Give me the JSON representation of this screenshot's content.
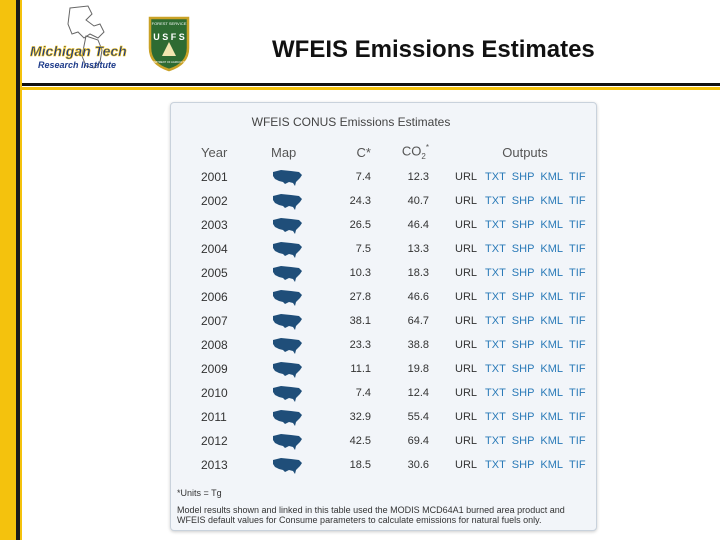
{
  "slide": {
    "title": "WFEIS Emissions Estimates",
    "logo_primary": "Michigan Tech",
    "logo_secondary": "Research Institute",
    "agency_logo": "U S F S",
    "agency_logo_top": "FOREST SERVICE",
    "agency_logo_bottom": "DEPARTMENT OF AGRICULTURE"
  },
  "table": {
    "title": "WFEIS CONUS Emissions Estimates",
    "headers": {
      "year": "Year",
      "map": "Map",
      "c": "C*",
      "co2_main": "CO",
      "co2_sub": "2",
      "co2_star": "*",
      "outputs": "Outputs"
    },
    "output_labels": [
      "URL",
      "TXT",
      "SHP",
      "KML",
      "TIF"
    ],
    "rows": [
      {
        "year": "2001",
        "c": "7.4",
        "co2": "12.3"
      },
      {
        "year": "2002",
        "c": "24.3",
        "co2": "40.7"
      },
      {
        "year": "2003",
        "c": "26.5",
        "co2": "46.4"
      },
      {
        "year": "2004",
        "c": "7.5",
        "co2": "13.3"
      },
      {
        "year": "2005",
        "c": "10.3",
        "co2": "18.3"
      },
      {
        "year": "2006",
        "c": "27.8",
        "co2": "46.6"
      },
      {
        "year": "2007",
        "c": "38.1",
        "co2": "64.7"
      },
      {
        "year": "2008",
        "c": "23.3",
        "co2": "38.8"
      },
      {
        "year": "2009",
        "c": "11.1",
        "co2": "19.8"
      },
      {
        "year": "2010",
        "c": "7.4",
        "co2": "12.4"
      },
      {
        "year": "2011",
        "c": "32.9",
        "co2": "55.4"
      },
      {
        "year": "2012",
        "c": "42.5",
        "co2": "69.4"
      },
      {
        "year": "2013",
        "c": "18.5",
        "co2": "30.6"
      }
    ],
    "units_note": "*Units = Tg",
    "footnote": "Model results shown and linked in this table used the MODIS MCD64A1 burned area product and WFEIS default values for Consume parameters to calculate emissions for natural fuels only."
  }
}
